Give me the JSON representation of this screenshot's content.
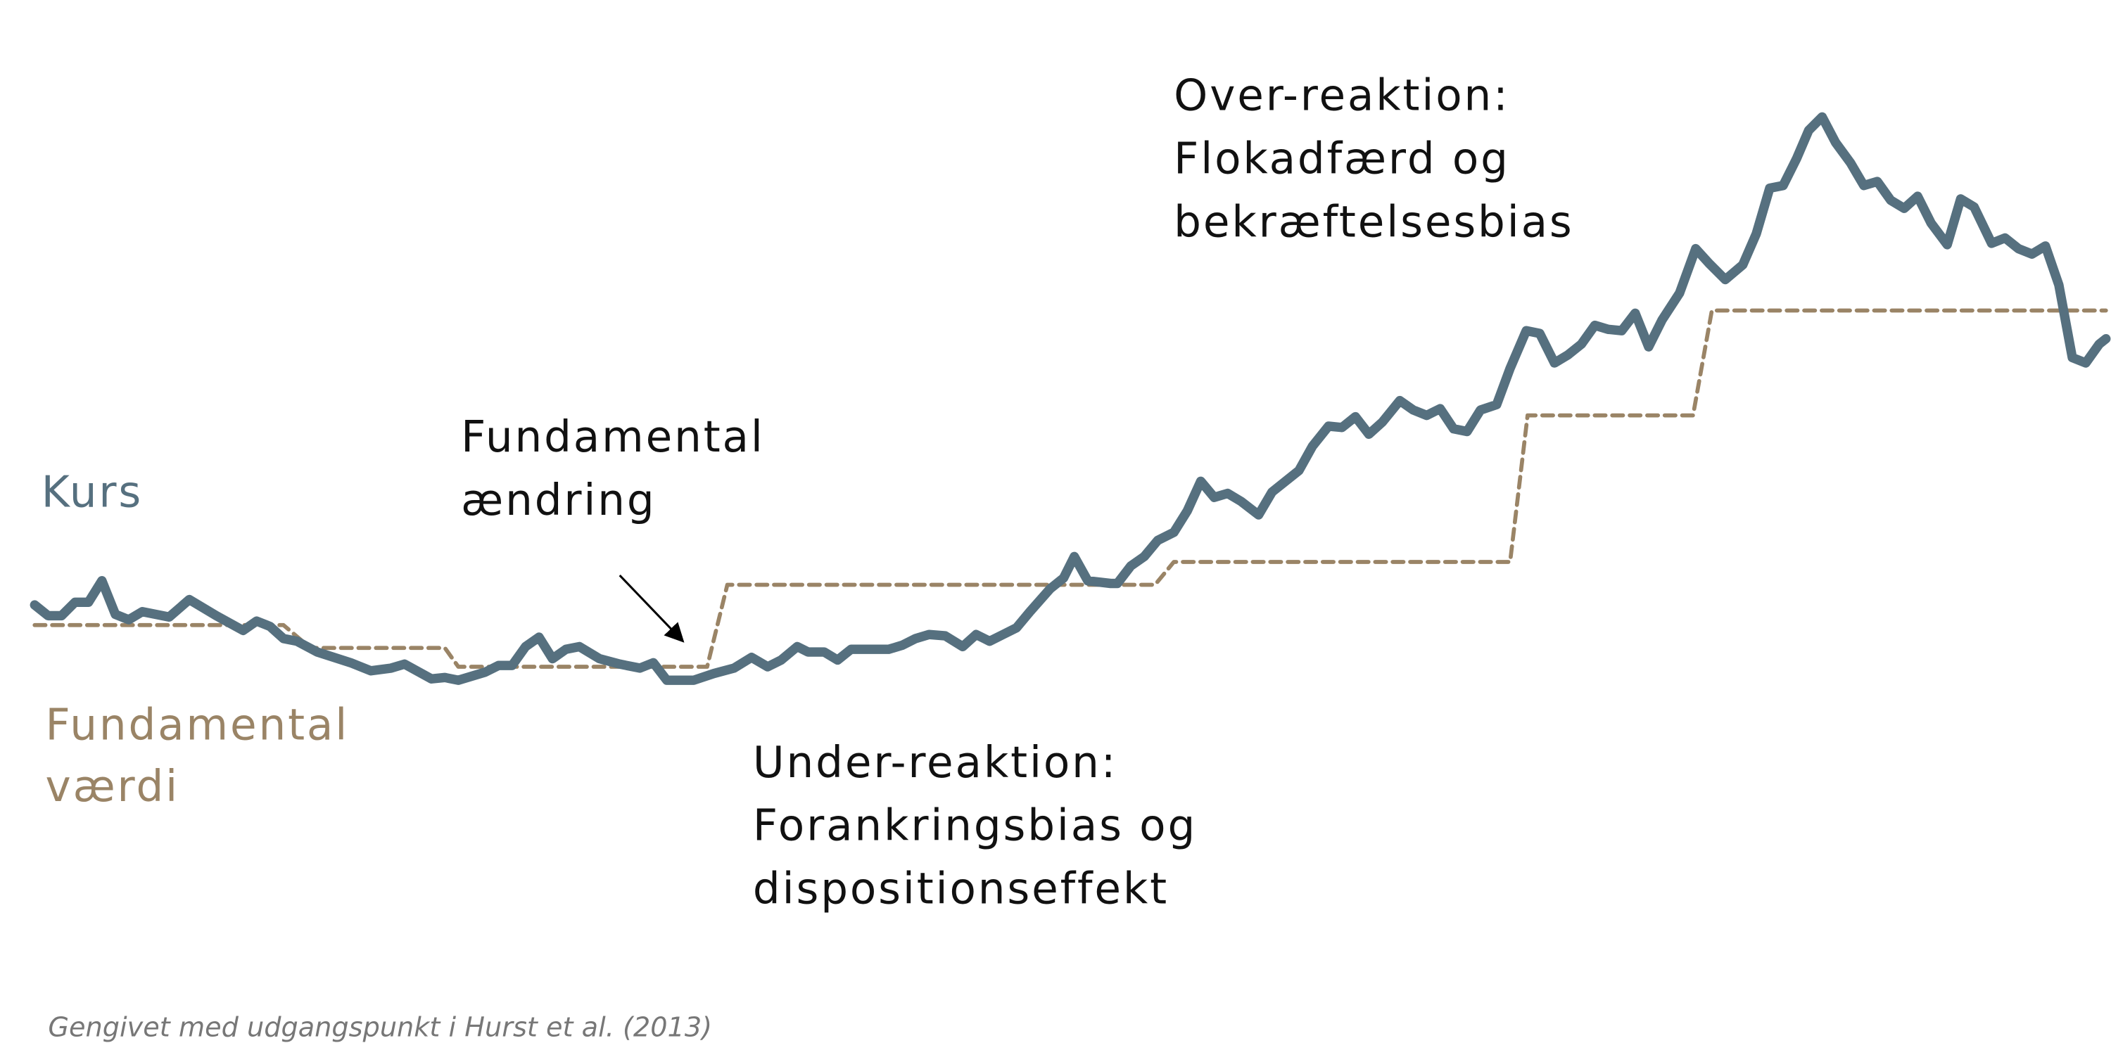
{
  "chart_data": {
    "type": "line",
    "xlim": [
      0,
      1568
    ],
    "ylim": [
      0,
      790
    ],
    "series": [
      {
        "name": [
          "Kurs"
        ],
        "color": "#56707f",
        "style": "solid",
        "x": [
          25,
          35,
          45,
          55,
          65,
          75,
          85,
          95,
          105,
          125,
          140,
          160,
          180,
          190,
          200,
          210,
          220,
          235,
          260,
          275,
          290,
          300,
          320,
          330,
          340,
          360,
          370,
          380,
          390,
          400,
          410,
          420,
          430,
          445,
          460,
          475,
          485,
          495,
          515,
          530,
          545,
          558,
          570,
          580,
          592,
          600,
          612,
          622,
          632,
          660,
          670,
          680,
          690,
          702,
          715,
          725,
          735,
          745,
          755,
          765,
          780,
          790,
          798,
          808,
          825,
          830,
          840,
          850,
          860,
          872,
          882,
          892,
          902,
          912,
          922,
          935,
          945,
          965,
          975,
          987,
          997,
          1007,
          1017,
          1027,
          1040,
          1050,
          1060,
          1070,
          1080,
          1090,
          1100,
          1112,
          1122,
          1134,
          1144,
          1155,
          1165,
          1175,
          1185,
          1195,
          1205,
          1215,
          1225,
          1235,
          1248,
          1260,
          1270,
          1282,
          1295,
          1305,
          1315,
          1325,
          1335,
          1344,
          1354,
          1364,
          1375,
          1385,
          1395,
          1405,
          1415,
          1425,
          1435,
          1447,
          1457,
          1467,
          1480,
          1490,
          1500,
          1510,
          1520,
          1530,
          1540,
          1550,
          1560,
          1565
        ],
        "values": [
          340,
          332,
          332,
          342,
          342,
          358,
          333,
          329,
          335,
          331,
          344,
          332,
          321,
          328,
          324,
          315,
          313,
          305,
          297,
          291,
          293,
          296,
          285,
          286,
          284,
          290,
          295,
          295,
          309,
          316,
          300,
          307,
          309,
          300,
          296,
          293,
          297,
          284,
          284,
          289,
          293,
          301,
          294,
          299,
          309,
          305,
          305,
          299,
          307,
          307,
          310,
          315,
          318,
          317,
          309,
          318,
          313,
          318,
          323,
          335,
          352,
          360,
          376,
          358,
          356,
          356,
          369,
          376,
          388,
          394,
          410,
          432,
          420,
          423,
          417,
          407,
          424,
          440,
          458,
          473,
          472,
          480,
          467,
          476,
          492,
          485,
          481,
          486,
          471,
          469,
          485,
          489,
          516,
          544,
          542,
          520,
          526,
          534,
          548,
          545,
          544,
          557,
          532,
          552,
          572,
          605,
          594,
          582,
          593,
          616,
          650,
          652,
          672,
          693,
          703,
          684,
          669,
          652,
          655,
          641,
          635,
          644,
          624,
          608,
          642,
          636,
          609,
          613,
          605,
          601,
          607,
          578,
          524,
          520,
          534,
          538
        ]
      },
      {
        "name": [
          "Fundamental",
          "værdi"
        ],
        "color": "#9a8466",
        "style": "dashed",
        "x": [
          25,
          210,
          230,
          330,
          340,
          525,
          540,
          858,
          872,
          1122,
          1135,
          1258,
          1272,
          1565
        ],
        "values": [
          325,
          325,
          308,
          308,
          294,
          294,
          355,
          355,
          372,
          372,
          481,
          481,
          559,
          559
        ]
      }
    ],
    "annotations": [
      {
        "lines": [
          "Over-reaktion:",
          "Flokadfærd og",
          "bekræftelsesbias"
        ]
      },
      {
        "lines": [
          "Fundamental",
          "ændring"
        ]
      },
      {
        "lines": [
          "Under-reaktion:",
          "Forankringsbias og",
          "dispositionseffekt"
        ]
      }
    ],
    "source": "Gengivet med udgangspunkt  i Hurst et al. (2013)"
  }
}
